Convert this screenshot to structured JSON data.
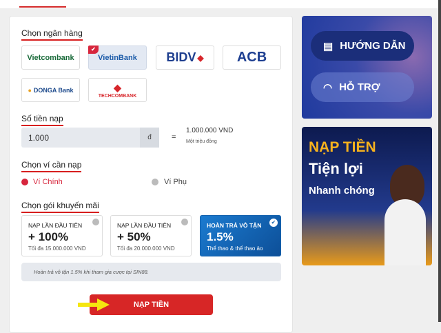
{
  "sections": {
    "bank": "Chọn ngân hàng",
    "amount": "Số tiền nạp",
    "wallet": "Chọn ví cần nạp",
    "promo": "Chọn gói khuyến mãi"
  },
  "banks": [
    {
      "name": "Vietcombank",
      "color": "#1a6b3a",
      "selected": false
    },
    {
      "name": "VietinBank",
      "color": "#1a5aa8",
      "selected": true
    },
    {
      "name": "BIDV",
      "color": "#1f3f8f",
      "selected": false
    },
    {
      "name": "ACB",
      "color": "#1e3f91",
      "selected": false
    },
    {
      "name": "DONGA Bank",
      "color": "#1d4a8c",
      "selected": false
    },
    {
      "name": "TECHCOMBANK",
      "color": "#d7262b",
      "selected": false
    }
  ],
  "amount": {
    "value": "1.000",
    "currency": "đ",
    "equals": "=",
    "converted": "1.000.000 VND",
    "words": "Một triệu đồng"
  },
  "wallets": [
    {
      "label": "Ví Chính",
      "selected": true
    },
    {
      "label": "Ví Phụ",
      "selected": false
    }
  ],
  "promos": [
    {
      "title": "NẠP LẦN ĐẦU TIÊN",
      "value": "+ 100%",
      "sub": "Tối đa 15.000.000 VND",
      "selected": false
    },
    {
      "title": "NẠP LẦN ĐẦU TIÊN",
      "value": "+ 50%",
      "sub": "Tối đa 20.000.000 VND",
      "selected": false
    },
    {
      "title": "HOÀN TRẢ VÔ TẬN",
      "value": "1.5%",
      "sub": "Thể thao & thể thao ảo",
      "selected": true
    }
  ],
  "note": "Hoàn trả vô tận 1.5% khi tham gia cược tại SIN88.",
  "submit": "NẠP TIỀN",
  "side": {
    "guide": "HƯỚNG DẪN",
    "support": "HỖ TRỢ",
    "banner": {
      "line1": "NẠP TIỀN",
      "line2": "Tiện lợi",
      "line3": "Nhanh chóng"
    }
  }
}
